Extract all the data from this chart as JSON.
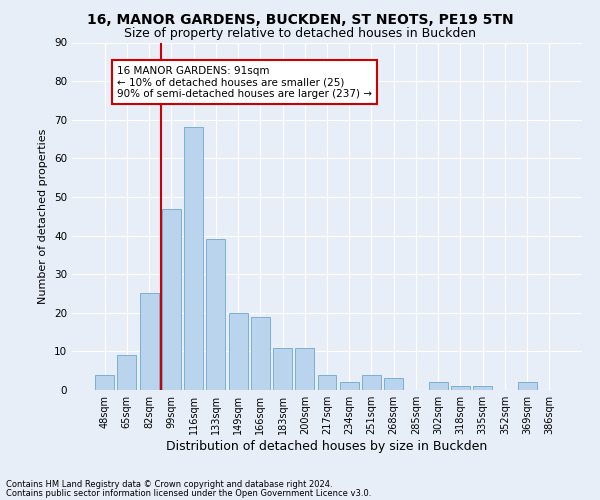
{
  "title1": "16, MANOR GARDENS, BUCKDEN, ST NEOTS, PE19 5TN",
  "title2": "Size of property relative to detached houses in Buckden",
  "xlabel": "Distribution of detached houses by size in Buckden",
  "ylabel": "Number of detached properties",
  "footnote1": "Contains HM Land Registry data © Crown copyright and database right 2024.",
  "footnote2": "Contains public sector information licensed under the Open Government Licence v3.0.",
  "bar_labels": [
    "48sqm",
    "65sqm",
    "82sqm",
    "99sqm",
    "116sqm",
    "133sqm",
    "149sqm",
    "166sqm",
    "183sqm",
    "200sqm",
    "217sqm",
    "234sqm",
    "251sqm",
    "268sqm",
    "285sqm",
    "302sqm",
    "318sqm",
    "335sqm",
    "352sqm",
    "369sqm",
    "386sqm"
  ],
  "bar_values": [
    4,
    9,
    25,
    47,
    68,
    39,
    20,
    19,
    11,
    11,
    4,
    2,
    4,
    3,
    0,
    2,
    1,
    1,
    0,
    2,
    0
  ],
  "bar_color": "#bad4ee",
  "bar_edge_color": "#7aafd4",
  "vline_color": "#cc0000",
  "annotation_text": "16 MANOR GARDENS: 91sqm\n← 10% of detached houses are smaller (25)\n90% of semi-detached houses are larger (237) →",
  "annotation_box_color": "#ffffff",
  "annotation_box_edge_color": "#cc0000",
  "ylim": [
    0,
    90
  ],
  "yticks": [
    0,
    10,
    20,
    30,
    40,
    50,
    60,
    70,
    80,
    90
  ],
  "bg_color": "#e8eef8",
  "plot_bg_color": "#e8eef8",
  "grid_color": "#ffffff",
  "title1_fontsize": 10,
  "title2_fontsize": 9,
  "xlabel_fontsize": 9,
  "ylabel_fontsize": 8,
  "tick_fontsize": 7,
  "annotation_fontsize": 7.5
}
